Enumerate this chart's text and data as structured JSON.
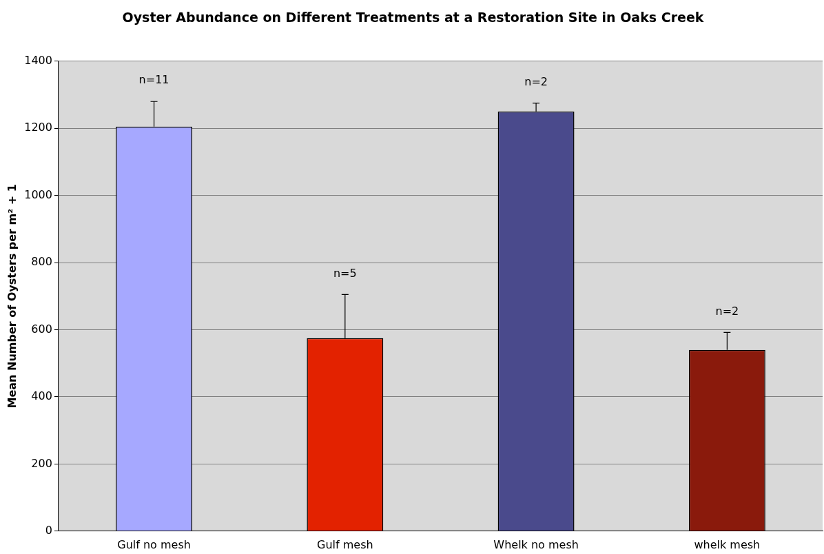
{
  "chart_data": {
    "type": "bar",
    "title": "Oyster Abundance on Different Treatments at a Restoration Site in Oaks Creek",
    "ylabel": "Mean Number of Oysters per m² + 1",
    "categories": [
      "Gulf no mesh",
      "Gulf mesh",
      "Whelk no mesh",
      "whelk mesh"
    ],
    "values": [
      1205,
      575,
      1250,
      540
    ],
    "colors": [
      "#a6a8ff",
      "#e32200",
      "#4a4a8c",
      "#8a1a0c"
    ],
    "errors": [
      [
        1205,
        1280
      ],
      [
        575,
        705
      ],
      [
        1250,
        1275
      ],
      [
        540,
        592
      ]
    ],
    "ylim": [
      0,
      1400
    ],
    "yticks": [
      0,
      200,
      400,
      600,
      800,
      1000,
      1200,
      1400
    ],
    "grid": "y",
    "legend": false,
    "annotations": [
      "n=11",
      "n=5",
      "n=2",
      "n=2"
    ]
  }
}
